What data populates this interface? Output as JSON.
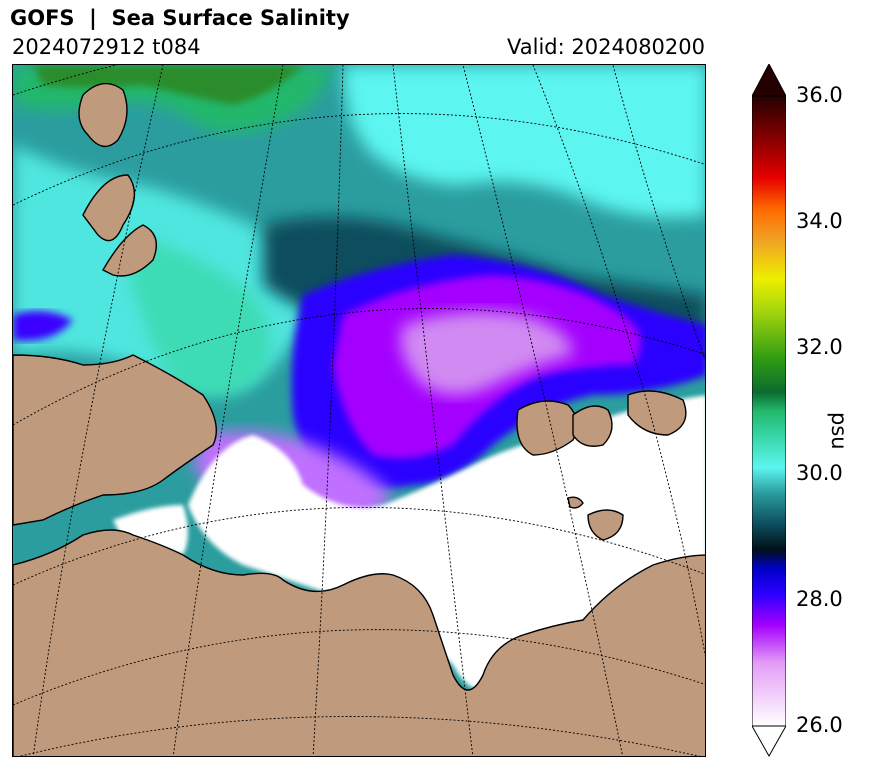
{
  "header": {
    "title": "GOFS  |  Sea Surface Salinity",
    "run": "2024072912 t084",
    "valid": "Valid: 2024080200"
  },
  "colorbar": {
    "label": "psu",
    "min": 26.0,
    "max": 36.0,
    "extend": "both",
    "ticks": [
      "26.0",
      "28.0",
      "30.0",
      "32.0",
      "34.0",
      "36.0"
    ],
    "stops": [
      {
        "value": 26.0,
        "color": "#ffffff"
      },
      {
        "value": 27.0,
        "color": "#e49cf6"
      },
      {
        "value": 27.6,
        "color": "#a400ff"
      },
      {
        "value": 28.1,
        "color": "#2a00ff"
      },
      {
        "value": 28.5,
        "color": "#0000c8"
      },
      {
        "value": 28.8,
        "color": "#001018"
      },
      {
        "value": 29.2,
        "color": "#0d4d5d"
      },
      {
        "value": 29.7,
        "color": "#2b9d9f"
      },
      {
        "value": 30.1,
        "color": "#5cf5ef"
      },
      {
        "value": 30.5,
        "color": "#3ddcb5"
      },
      {
        "value": 31.0,
        "color": "#22b86c"
      },
      {
        "value": 31.3,
        "color": "#0d6b2f"
      },
      {
        "value": 31.8,
        "color": "#2c9a13"
      },
      {
        "value": 32.6,
        "color": "#a6d70d"
      },
      {
        "value": 33.1,
        "color": "#eeee00"
      },
      {
        "value": 33.7,
        "color": "#f0a324"
      },
      {
        "value": 34.2,
        "color": "#ff6a00"
      },
      {
        "value": 34.7,
        "color": "#e60000"
      },
      {
        "value": 35.3,
        "color": "#8a0000"
      },
      {
        "value": 36.0,
        "color": "#250000"
      }
    ]
  },
  "map": {
    "region": "Kara Sea",
    "colors": {
      "land": "#c09a7c",
      "ice": "#ffffff",
      "coast": "#000000"
    }
  }
}
